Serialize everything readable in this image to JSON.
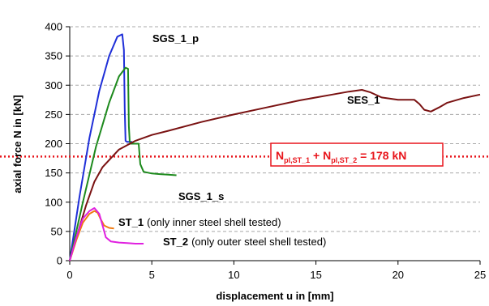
{
  "chart_data": {
    "type": "line",
    "xlabel": "displacement u in [mm]",
    "ylabel": "axial force N in [kN]",
    "xlim": [
      0,
      25
    ],
    "ylim": [
      0,
      400
    ],
    "x_ticks": [
      0,
      5,
      10,
      15,
      20,
      25
    ],
    "y_ticks": [
      0,
      50,
      100,
      150,
      200,
      250,
      300,
      350,
      400
    ],
    "grid": "horizontal dashed",
    "series": [
      {
        "name": "SGS_1_p",
        "color": "#1f2fd8",
        "x": [
          0,
          0.6,
          1.2,
          1.8,
          2.4,
          2.9,
          3.2,
          3.3,
          3.35,
          3.4,
          3.5,
          3.8
        ],
        "y": [
          0,
          110,
          210,
          290,
          350,
          383,
          387,
          360,
          260,
          205,
          203,
          203
        ]
      },
      {
        "name": "SGS_1_s",
        "color": "#1d8a1d",
        "x": [
          0,
          0.8,
          1.6,
          2.4,
          3.0,
          3.4,
          3.55,
          3.6,
          3.65,
          3.7,
          4.0,
          4.2,
          4.3,
          4.5,
          5.0,
          5.5,
          6.0,
          6.5
        ],
        "y": [
          0,
          100,
          195,
          270,
          315,
          330,
          328,
          230,
          205,
          200,
          200,
          200,
          165,
          152,
          149,
          148,
          147,
          146
        ]
      },
      {
        "name": "SES_1",
        "color": "#7a1212",
        "x": [
          0,
          0.5,
          1.0,
          1.5,
          2.0,
          2.5,
          3.0,
          4.0,
          5.0,
          6.0,
          8.0,
          10.0,
          12.0,
          14.0,
          16.0,
          17.0,
          17.8,
          18.3,
          19.0,
          20.0,
          21.0,
          21.3,
          21.6,
          22.0,
          22.5,
          23.0,
          24.0,
          25.0
        ],
        "y": [
          0,
          48,
          95,
          135,
          160,
          175,
          190,
          205,
          215,
          222,
          237,
          250,
          262,
          274,
          284,
          289,
          292,
          288,
          279,
          275,
          275,
          268,
          258,
          255,
          262,
          270,
          278,
          284
        ]
      },
      {
        "name": "ST_1",
        "note": "(only inner steel shell tested)",
        "color": "#f07a12",
        "x": [
          0,
          0.4,
          0.8,
          1.2,
          1.5,
          1.7,
          1.9,
          2.1,
          2.4,
          2.7
        ],
        "y": [
          0,
          35,
          65,
          80,
          85,
          82,
          70,
          60,
          56,
          55
        ]
      },
      {
        "name": "ST_2",
        "note": "(only outer steel shell tested)",
        "color": "#e020e0",
        "x": [
          0,
          0.4,
          0.8,
          1.2,
          1.5,
          1.8,
          2.0,
          2.2,
          2.5,
          3.0,
          3.5,
          4.0,
          4.5
        ],
        "y": [
          0,
          40,
          72,
          85,
          90,
          80,
          60,
          40,
          33,
          31,
          30,
          29,
          29
        ]
      }
    ],
    "reference_line": {
      "y": 178,
      "color": "#e8141b",
      "style": "dotted",
      "label_N": "N",
      "label_sub1": "pl,ST_1",
      "label_plus": " + N",
      "label_sub2": "pl,ST_2",
      "label_value": " = 178 kN"
    }
  }
}
